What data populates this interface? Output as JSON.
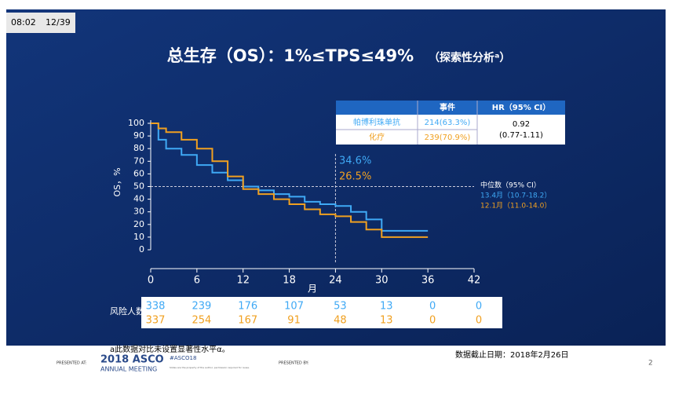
{
  "header": {
    "time": "08:02",
    "slide": "12/39"
  },
  "chart_data": {
    "type": "step",
    "title": "总生存（OS）：1%≤TPS≤49%",
    "title_note": "（探索性分析ᵃ）",
    "x_label": "月",
    "y_label": "OS，%",
    "x": [
      0,
      1,
      2,
      4,
      6,
      8,
      10,
      12,
      14,
      16,
      18,
      20,
      22,
      24,
      26,
      28,
      30,
      33,
      36
    ],
    "series": [
      {
        "name": "帕博利珠单抗",
        "color": "#3fa9f5",
        "values": [
          100,
          87,
          80,
          75,
          67,
          61,
          55,
          50,
          47,
          44,
          42,
          38,
          36,
          34.6,
          30,
          24,
          15,
          15,
          15
        ]
      },
      {
        "name": "化疗",
        "color": "#f0a020",
        "values": [
          100,
          96,
          93,
          87,
          80,
          70,
          58,
          48,
          44,
          40,
          36,
          32,
          28,
          26.5,
          22,
          16,
          10,
          10,
          10
        ]
      }
    ],
    "xlim": [
      0,
      42
    ],
    "xticks": [
      0,
      6,
      12,
      18,
      24,
      30,
      36,
      42
    ],
    "ylim": [
      0,
      100
    ],
    "yticks": [
      0,
      10,
      20,
      30,
      40,
      50,
      60,
      70,
      80,
      90,
      100
    ],
    "hline": 50,
    "vline": 24,
    "annotations": [
      "34.6%",
      "26.5%"
    ],
    "median": {
      "title": "中位数（95% CI）",
      "rows": [
        "13.4月（10.7-18.2）",
        "12.1月（11.0-14.0）"
      ]
    }
  },
  "hr_table": {
    "headers": [
      "事件",
      "HR（95% CI）"
    ],
    "events": [
      "214(63.3%)",
      "239(70.9%)"
    ],
    "hr": "0.92",
    "ci": "(0.77-1.11)"
  },
  "risk_table": {
    "label": "风险人数",
    "rows": [
      [
        338,
        239,
        176,
        107,
        53,
        13,
        0,
        0
      ],
      [
        337,
        254,
        167,
        91,
        48,
        13,
        0,
        0
      ]
    ]
  },
  "footer": {
    "note": "a此数据对比未设置显著性水平α。",
    "cutoff": "数据截止日期：2018年2月26日",
    "page": "2",
    "presented_at": "PRESENTED AT:",
    "asco": "2018 ASCO",
    "meeting": "ANNUAL MEETING",
    "hashtag": "#ASCO18",
    "disclaimer": "Slides are the property of the author, permission required for reuse.",
    "presented_by": "PRESENTED BY:"
  }
}
